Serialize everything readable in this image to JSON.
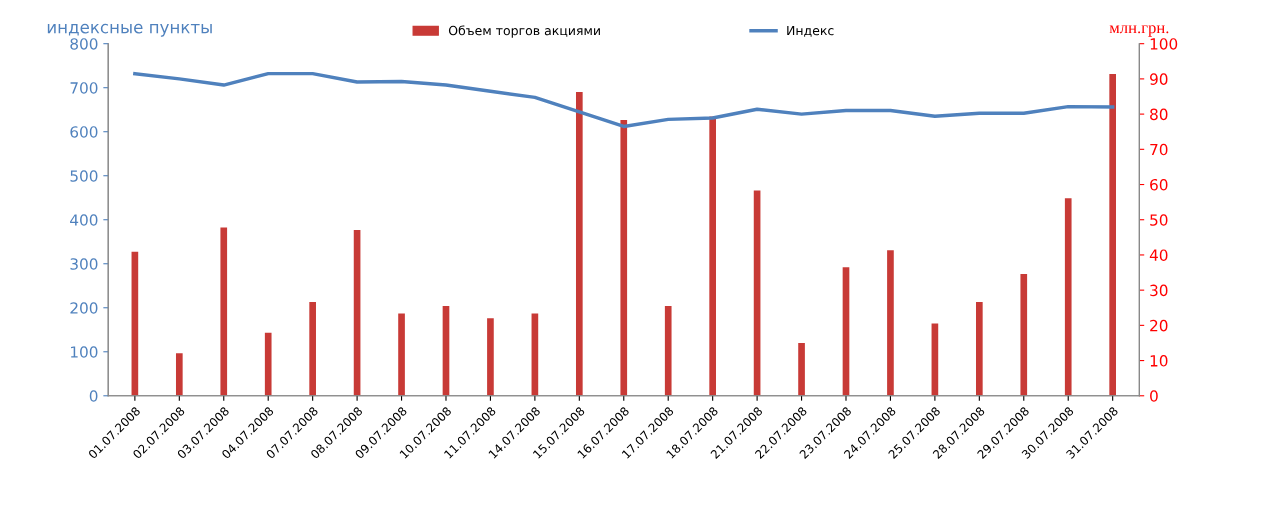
{
  "chart_data": {
    "type": "bar",
    "ylabel": "индексные пункты",
    "y2label": "млн.грн.",
    "categories": [
      "01.07.2008",
      "02.07.2008",
      "03.07.2008",
      "04.07.2008",
      "07.07.2008",
      "08.07.2008",
      "09.07.2008",
      "10.07.2008",
      "11.07.2008",
      "14.07.2008",
      "15.07.2008",
      "16.07.2008",
      "17.07.2008",
      "18.07.2008",
      "21.07.2008",
      "22.07.2008",
      "23.07.2008",
      "24.07.2008",
      "25.07.2008",
      "28.07.2008",
      "29.07.2008",
      "30.07.2008",
      "31.07.2008"
    ],
    "series": [
      {
        "name": "Объем торгов акциями",
        "axis": "y2",
        "color": "#c83a36",
        "values": [
          40.9,
          12.1,
          47.8,
          17.9,
          26.6,
          47.1,
          23.4,
          25.5,
          22,
          23.4,
          86.3,
          78.3,
          25.5,
          79.3,
          58.3,
          15,
          36.5,
          41.3,
          20.5,
          26.6,
          34.6,
          56.1,
          91.4
        ]
      },
      {
        "name": "Индекс",
        "type": "line",
        "color": "#4f81bd",
        "values": [
          732,
          720,
          706,
          732,
          732,
          713,
          714,
          706,
          692,
          678,
          645,
          612,
          628,
          631,
          651,
          640,
          648,
          648,
          635,
          642,
          642,
          657,
          656
        ]
      }
    ],
    "ylim": [
      0,
      800
    ],
    "yticks": [
      0,
      100,
      200,
      300,
      400,
      500,
      600,
      700,
      800
    ],
    "y2lim": [
      0,
      100
    ],
    "y2ticks": [
      0,
      10,
      20,
      30,
      40,
      50,
      60,
      70,
      80,
      90,
      100
    ],
    "grid": false,
    "legend": "top",
    "marker": "none",
    "line_style": "solid"
  }
}
